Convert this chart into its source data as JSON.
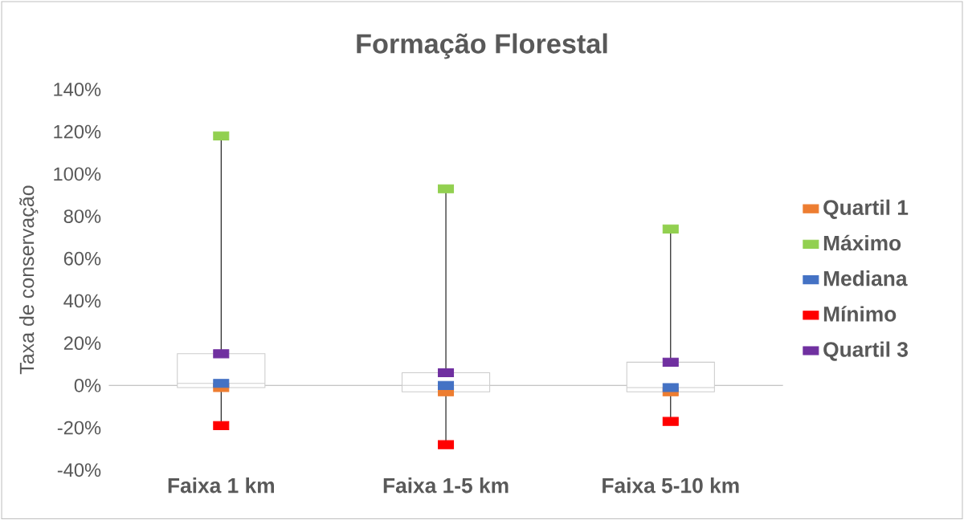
{
  "chart_data": {
    "type": "box",
    "title": "Formação Florestal",
    "ylabel": "Taxa de conservação",
    "categories": [
      "Faixa 1 km",
      "Faixa 1-5 km",
      "Faixa 5-10 km"
    ],
    "boxes": [
      {
        "low": -19,
        "q1": -1,
        "median": 1,
        "q3": 15,
        "high": 118
      },
      {
        "low": -28,
        "q1": -3,
        "median": 0,
        "q3": 6,
        "high": 93
      },
      {
        "low": -17,
        "q1": -3,
        "median": -1,
        "q3": 11,
        "high": 74
      }
    ],
    "series": [
      {
        "type": "scatter",
        "name": "Quartil 1",
        "color": "#ed7d31",
        "values": [
          -1,
          -3,
          -3
        ]
      },
      {
        "type": "scatter",
        "name": "Máximo",
        "color": "#92d050",
        "values": [
          118,
          93,
          74
        ]
      },
      {
        "type": "scatter",
        "name": "Mediana",
        "color": "#4472c4",
        "values": [
          1,
          0,
          -1
        ]
      },
      {
        "type": "scatter",
        "name": "Mínimo",
        "color": "#ff0000",
        "values": [
          -19,
          -28,
          -17
        ]
      },
      {
        "type": "scatter",
        "name": "Quartil 3",
        "color": "#7030a0",
        "values": [
          15,
          6,
          11
        ]
      }
    ],
    "ylim": [
      -40,
      140
    ],
    "yticks": [
      {
        "value": -40,
        "label": "-40%"
      },
      {
        "value": -20,
        "label": "-20%"
      },
      {
        "value": 0,
        "label": "0%"
      },
      {
        "value": 20,
        "label": "20%"
      },
      {
        "value": 40,
        "label": "40%"
      },
      {
        "value": 60,
        "label": "60%"
      },
      {
        "value": 80,
        "label": "80%"
      },
      {
        "value": 100,
        "label": "100%"
      },
      {
        "value": 120,
        "label": "120%"
      },
      {
        "value": 140,
        "label": "140%"
      }
    ],
    "grid": false,
    "legend": "right",
    "marker": "square"
  }
}
